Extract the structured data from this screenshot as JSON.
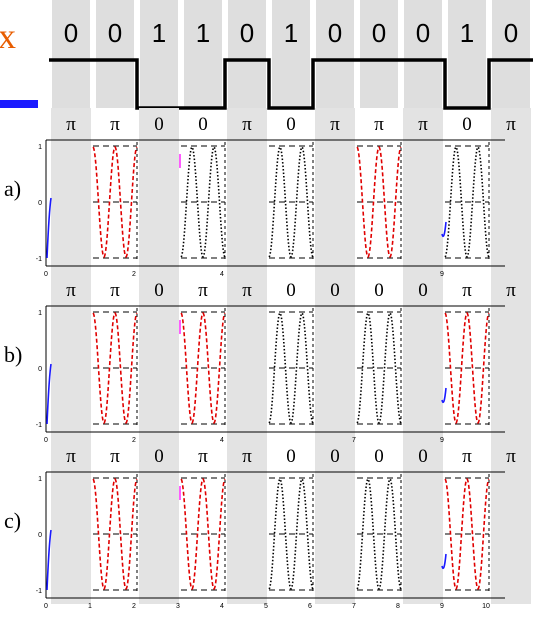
{
  "corner_mark": "x",
  "bits": [
    "0",
    "0",
    "1",
    "1",
    "0",
    "1",
    "0",
    "0",
    "0",
    "1",
    "0"
  ],
  "rows": [
    {
      "label": "a)",
      "phases": [
        "π",
        "π",
        "0",
        "0",
        "π",
        "0",
        "π",
        "π",
        "π",
        "0",
        "π"
      ],
      "x_ticks": [
        "0",
        "2",
        "4",
        "9"
      ],
      "y_ticks": [
        "1",
        "0",
        "-1"
      ]
    },
    {
      "label": "b)",
      "phases": [
        "π",
        "π",
        "0",
        "π",
        "π",
        "0",
        "0",
        "0",
        "0",
        "π",
        "π"
      ],
      "x_ticks": [
        "0",
        "2",
        "4",
        "7",
        "9"
      ],
      "y_ticks": [
        "1",
        "0",
        "-1"
      ]
    },
    {
      "label": "c)",
      "phases": [
        "π",
        "π",
        "0",
        "π",
        "π",
        "0",
        "0",
        "0",
        "0",
        "π",
        "π"
      ],
      "x_ticks": [
        "0",
        "1",
        "2",
        "3",
        "4",
        "5",
        "6",
        "7",
        "8",
        "9",
        "10"
      ],
      "y_ticks": [
        "1",
        "0",
        "-1"
      ]
    }
  ],
  "colors": {
    "bit_bar": "#dedede",
    "panel_bar": "#e3e3e3",
    "waveform": "#000000",
    "accent_blue": "#1a1aff",
    "accent_orange": "#e85d00",
    "sine_red": "#e00000",
    "sine_black": "#000000",
    "magenta": "#ff33ff"
  }
}
